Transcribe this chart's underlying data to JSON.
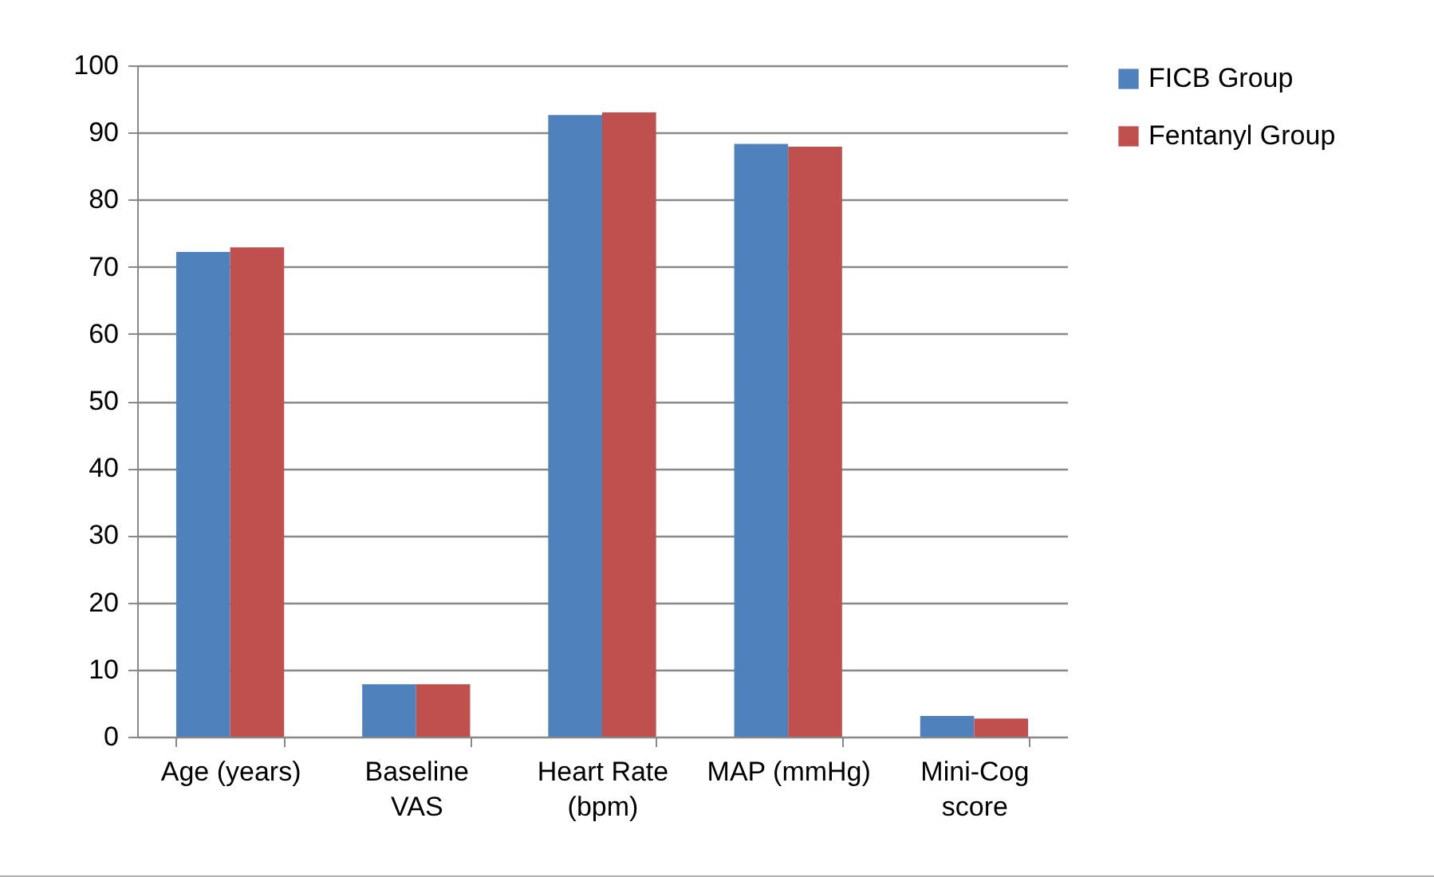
{
  "chart_data": {
    "type": "bar",
    "categories": [
      "Age (years)",
      "Baseline VAS",
      "Heart Rate (bpm)",
      "MAP (mmHg)",
      "Mini-Cog score"
    ],
    "series": [
      {
        "name": "FICB Group",
        "color": "#4f81bd",
        "values": [
          72.2,
          7.8,
          92.6,
          88.3,
          3.1
        ]
      },
      {
        "name": "Fentanyl Group",
        "color": "#c0504d",
        "values": [
          72.9,
          7.8,
          93.0,
          87.9,
          2.7
        ]
      }
    ],
    "ylim": [
      0,
      100
    ],
    "yticks": [
      0,
      10,
      20,
      30,
      40,
      50,
      60,
      70,
      80,
      90,
      100
    ],
    "grid": "y",
    "legend": "right"
  }
}
